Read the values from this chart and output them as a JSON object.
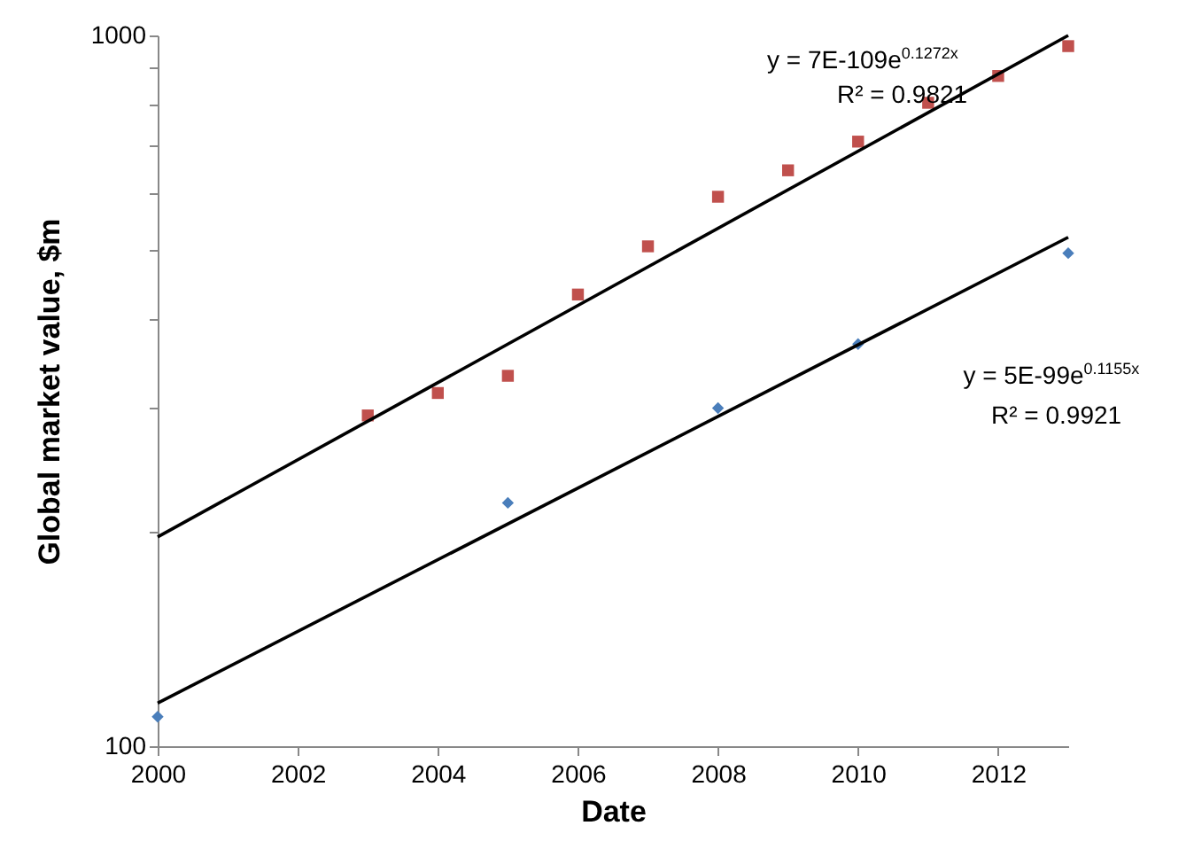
{
  "chart_data": {
    "type": "scatter",
    "xlabel": "Date",
    "ylabel": "Global market value, $m",
    "log": "y",
    "grid": false,
    "xlim": [
      2000,
      2013
    ],
    "xticks": [
      2000,
      2002,
      2004,
      2006,
      2008,
      2010,
      2012
    ],
    "ylim": [
      100,
      1000
    ],
    "yticks": [
      100,
      {
        "value": 200,
        "label": null
      },
      {
        "value": 300,
        "label": null
      },
      {
        "value": 400,
        "label": null
      },
      {
        "value": 500,
        "label": null
      },
      {
        "value": 600,
        "label": null
      },
      {
        "value": 700,
        "label": null
      },
      {
        "value": 800,
        "label": null
      },
      {
        "value": 900,
        "label": null
      },
      1000
    ],
    "series": [
      {
        "marker": "diamond",
        "color": "#4a7ebb",
        "x": [
          2000,
          2005,
          2008,
          2010,
          2013
        ],
        "values": [
          110,
          220,
          299,
          368,
          494
        ]
      },
      {
        "marker": "square",
        "color": "#c0504d",
        "x": [
          2003,
          2004,
          2005,
          2006,
          2007,
          2008,
          2009,
          2010,
          2011,
          2012,
          2013
        ],
        "values": [
          292,
          314,
          332,
          432,
          505,
          593,
          646,
          709,
          804,
          877,
          966
        ]
      },
      {
        "type": "line",
        "color": "#000000",
        "x": [
          2000,
          2013
        ],
        "values": [
          197,
          1000
        ]
      },
      {
        "type": "line",
        "color": "#000000",
        "x": [
          2000,
          2013
        ],
        "values": [
          115,
          520
        ]
      }
    ],
    "annotations": [
      "y = 7E-109e$^{0.1272x}$",
      "R² = 0.9821",
      "y = 5E-99e$^{0.1155x}$",
      "R² = 0.9921"
    ]
  }
}
